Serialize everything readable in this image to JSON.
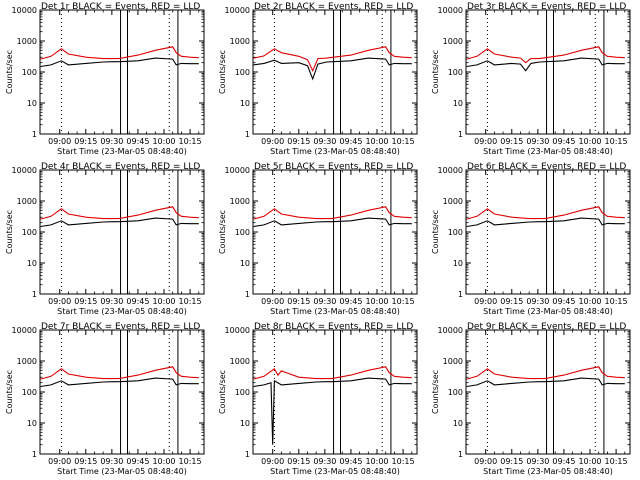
{
  "figure": {
    "background": "#ffffff",
    "event_color": "#000000",
    "lld_color": "#e00000"
  },
  "chart_data": [
    {
      "type": "line",
      "title": "Det 1r BLACK = Events, RED = LLD",
      "xlabel": "Start Time (23-Mar-05 08:48:40)",
      "ylabel": "Counts/sec",
      "y_scale": "log",
      "ylim": [
        1,
        10000
      ],
      "y_ticks": [
        "1",
        "10",
        "100",
        "1000",
        "10000"
      ],
      "x_ticks": [
        "09:00",
        "09:15",
        "09:30",
        "09:45",
        "10:00",
        "10:15"
      ],
      "series": [
        {
          "name": "Events",
          "color": "#000000",
          "x": [
            "08:49",
            "08:55",
            "09:01",
            "09:05",
            "09:15",
            "09:25",
            "09:31",
            "09:34",
            "09:45",
            "09:55",
            "10:05",
            "10:07",
            "10:10",
            "10:15",
            "10:20"
          ],
          "values": [
            150,
            170,
            230,
            170,
            190,
            210,
            215,
            215,
            230,
            280,
            260,
            170,
            190,
            185,
            185
          ]
        },
        {
          "name": "LLD",
          "color": "#e00000",
          "x": [
            "08:49",
            "08:55",
            "09:01",
            "09:05",
            "09:15",
            "09:25",
            "09:31",
            "09:34",
            "09:45",
            "09:55",
            "10:05",
            "10:07",
            "10:10",
            "10:15",
            "10:20"
          ],
          "values": [
            260,
            320,
            560,
            380,
            300,
            270,
            270,
            270,
            350,
            500,
            650,
            420,
            320,
            300,
            290
          ]
        }
      ],
      "saa_lines": [
        "09:35",
        "09:39",
        "10:08"
      ],
      "dotted_lines": [
        "09:01",
        "10:03"
      ]
    },
    {
      "type": "line",
      "title": "Det 2r BLACK = Events, RED = LLD",
      "xlabel": "Start Time (23-Mar-05 08:48:40)",
      "ylabel": "Counts/sec",
      "y_scale": "log",
      "ylim": [
        1,
        10000
      ],
      "y_ticks": [
        "1",
        "10",
        "100",
        "1000",
        "10000"
      ],
      "x_ticks": [
        "09:00",
        "09:15",
        "09:30",
        "09:45",
        "10:00",
        "10:15"
      ],
      "series": [
        {
          "name": "Events",
          "color": "#000000",
          "x": [
            "08:49",
            "08:55",
            "09:01",
            "09:05",
            "09:15",
            "09:20",
            "09:23",
            "09:26",
            "09:31",
            "09:45",
            "09:55",
            "10:05",
            "10:07",
            "10:10",
            "10:15",
            "10:20"
          ],
          "values": [
            170,
            190,
            240,
            190,
            200,
            160,
            60,
            180,
            210,
            230,
            280,
            260,
            170,
            190,
            185,
            185
          ]
        },
        {
          "name": "LLD",
          "color": "#e00000",
          "x": [
            "08:49",
            "08:55",
            "09:01",
            "09:05",
            "09:15",
            "09:20",
            "09:23",
            "09:26",
            "09:31",
            "09:45",
            "09:55",
            "10:05",
            "10:07",
            "10:10",
            "10:15",
            "10:20"
          ],
          "values": [
            280,
            330,
            560,
            420,
            320,
            250,
            110,
            270,
            280,
            350,
            500,
            650,
            420,
            320,
            300,
            290
          ]
        }
      ],
      "saa_lines": [
        "09:35",
        "09:39",
        "10:08"
      ],
      "dotted_lines": [
        "09:01",
        "10:03"
      ]
    },
    {
      "type": "line",
      "title": "Det 3r BLACK = Events, RED = LLD",
      "xlabel": "Start Time (23-Mar-05 08:48:40)",
      "ylabel": "Counts/sec",
      "y_scale": "log",
      "ylim": [
        1,
        10000
      ],
      "y_ticks": [
        "1",
        "10",
        "100",
        "1000",
        "10000"
      ],
      "x_ticks": [
        "09:00",
        "09:15",
        "09:30",
        "09:45",
        "10:00",
        "10:15"
      ],
      "series": [
        {
          "name": "Events",
          "color": "#000000",
          "x": [
            "08:49",
            "08:55",
            "09:01",
            "09:05",
            "09:15",
            "09:20",
            "09:23",
            "09:26",
            "09:31",
            "09:45",
            "09:55",
            "10:05",
            "10:07",
            "10:10",
            "10:15",
            "10:20"
          ],
          "values": [
            150,
            170,
            230,
            170,
            190,
            180,
            110,
            190,
            210,
            230,
            280,
            260,
            170,
            190,
            185,
            185
          ]
        },
        {
          "name": "LLD",
          "color": "#e00000",
          "x": [
            "08:49",
            "08:55",
            "09:01",
            "09:05",
            "09:15",
            "09:20",
            "09:23",
            "09:26",
            "09:31",
            "09:45",
            "09:55",
            "10:05",
            "10:07",
            "10:10",
            "10:15",
            "10:20"
          ],
          "values": [
            260,
            320,
            560,
            380,
            300,
            280,
            200,
            270,
            270,
            350,
            500,
            650,
            420,
            320,
            300,
            290
          ]
        }
      ],
      "saa_lines": [
        "09:35",
        "09:39",
        "10:08"
      ],
      "dotted_lines": [
        "09:01",
        "10:03"
      ]
    },
    {
      "type": "line",
      "title": "Det 4r BLACK = Events, RED = LLD",
      "xlabel": "Start Time (23-Mar-05 08:48:40)",
      "ylabel": "Counts/sec",
      "y_scale": "log",
      "ylim": [
        1,
        10000
      ],
      "y_ticks": [
        "1",
        "10",
        "100",
        "1000",
        "10000"
      ],
      "x_ticks": [
        "09:00",
        "09:15",
        "09:30",
        "09:45",
        "10:00",
        "10:15"
      ],
      "series": [
        {
          "name": "Events",
          "color": "#000000",
          "x": [
            "08:49",
            "08:55",
            "09:01",
            "09:05",
            "09:15",
            "09:25",
            "09:31",
            "09:34",
            "09:45",
            "09:55",
            "10:05",
            "10:07",
            "10:10",
            "10:15",
            "10:20"
          ],
          "values": [
            150,
            170,
            230,
            170,
            190,
            210,
            215,
            215,
            230,
            280,
            260,
            170,
            190,
            185,
            185
          ]
        },
        {
          "name": "LLD",
          "color": "#e00000",
          "x": [
            "08:49",
            "08:55",
            "09:01",
            "09:05",
            "09:15",
            "09:25",
            "09:31",
            "09:34",
            "09:45",
            "09:55",
            "10:05",
            "10:07",
            "10:10",
            "10:15",
            "10:20"
          ],
          "values": [
            260,
            320,
            560,
            380,
            300,
            270,
            270,
            270,
            350,
            500,
            650,
            420,
            320,
            300,
            290
          ]
        }
      ],
      "saa_lines": [
        "09:35",
        "09:39",
        "10:08"
      ],
      "dotted_lines": [
        "09:01",
        "10:03"
      ]
    },
    {
      "type": "line",
      "title": "Det 5r BLACK = Events, RED = LLD",
      "xlabel": "Start Time (23-Mar-05 08:48:40)",
      "ylabel": "Counts/sec",
      "y_scale": "log",
      "ylim": [
        1,
        10000
      ],
      "y_ticks": [
        "1",
        "10",
        "100",
        "1000",
        "10000"
      ],
      "x_ticks": [
        "09:00",
        "09:15",
        "09:30",
        "09:45",
        "10:00",
        "10:15"
      ],
      "series": [
        {
          "name": "Events",
          "color": "#000000",
          "x": [
            "08:49",
            "08:55",
            "09:01",
            "09:05",
            "09:15",
            "09:25",
            "09:31",
            "09:34",
            "09:45",
            "09:55",
            "10:05",
            "10:07",
            "10:10",
            "10:15",
            "10:20"
          ],
          "values": [
            150,
            170,
            230,
            170,
            190,
            210,
            215,
            215,
            230,
            280,
            260,
            170,
            190,
            185,
            185
          ]
        },
        {
          "name": "LLD",
          "color": "#e00000",
          "x": [
            "08:49",
            "08:55",
            "09:01",
            "09:05",
            "09:15",
            "09:25",
            "09:31",
            "09:34",
            "09:45",
            "09:55",
            "10:05",
            "10:07",
            "10:10",
            "10:15",
            "10:20"
          ],
          "values": [
            260,
            320,
            560,
            380,
            300,
            270,
            270,
            270,
            350,
            500,
            650,
            420,
            320,
            300,
            290
          ]
        }
      ],
      "saa_lines": [
        "09:35",
        "09:39",
        "10:08"
      ],
      "dotted_lines": [
        "09:01",
        "10:03"
      ]
    },
    {
      "type": "line",
      "title": "Det 6r BLACK = Events, RED = LLD",
      "xlabel": "Start Time (23-Mar-05 08:48:40)",
      "ylabel": "Counts/sec",
      "y_scale": "log",
      "ylim": [
        1,
        10000
      ],
      "y_ticks": [
        "1",
        "10",
        "100",
        "1000",
        "10000"
      ],
      "x_ticks": [
        "09:00",
        "09:15",
        "09:30",
        "09:45",
        "10:00",
        "10:15"
      ],
      "series": [
        {
          "name": "Events",
          "color": "#000000",
          "x": [
            "08:49",
            "08:55",
            "09:01",
            "09:05",
            "09:15",
            "09:25",
            "09:31",
            "09:34",
            "09:45",
            "09:55",
            "10:05",
            "10:07",
            "10:10",
            "10:15",
            "10:20"
          ],
          "values": [
            150,
            170,
            230,
            170,
            190,
            210,
            215,
            215,
            230,
            280,
            260,
            170,
            190,
            185,
            185
          ]
        },
        {
          "name": "LLD",
          "color": "#e00000",
          "x": [
            "08:49",
            "08:55",
            "09:01",
            "09:05",
            "09:15",
            "09:25",
            "09:31",
            "09:34",
            "09:45",
            "09:55",
            "10:05",
            "10:07",
            "10:10",
            "10:15",
            "10:20"
          ],
          "values": [
            260,
            320,
            560,
            380,
            300,
            270,
            270,
            270,
            350,
            500,
            650,
            420,
            320,
            300,
            290
          ]
        }
      ],
      "saa_lines": [
        "09:35",
        "09:39",
        "10:08"
      ],
      "dotted_lines": [
        "09:01",
        "10:03"
      ]
    },
    {
      "type": "line",
      "title": "Det 7r BLACK = Events, RED = LLD",
      "xlabel": "Start Time (23-Mar-05 08:48:40)",
      "ylabel": "Counts/sec",
      "y_scale": "log",
      "ylim": [
        1,
        10000
      ],
      "y_ticks": [
        "1",
        "10",
        "100",
        "1000",
        "10000"
      ],
      "x_ticks": [
        "09:00",
        "09:15",
        "09:30",
        "09:45",
        "10:00",
        "10:15"
      ],
      "series": [
        {
          "name": "Events",
          "color": "#000000",
          "x": [
            "08:49",
            "08:55",
            "09:01",
            "09:05",
            "09:15",
            "09:25",
            "09:31",
            "09:34",
            "09:45",
            "09:55",
            "10:05",
            "10:07",
            "10:10",
            "10:15",
            "10:20"
          ],
          "values": [
            150,
            170,
            230,
            170,
            190,
            210,
            215,
            215,
            230,
            280,
            260,
            170,
            190,
            185,
            185
          ]
        },
        {
          "name": "LLD",
          "color": "#e00000",
          "x": [
            "08:49",
            "08:55",
            "09:01",
            "09:05",
            "09:15",
            "09:25",
            "09:31",
            "09:34",
            "09:45",
            "09:55",
            "10:05",
            "10:07",
            "10:10",
            "10:15",
            "10:20"
          ],
          "values": [
            260,
            320,
            560,
            380,
            300,
            270,
            270,
            270,
            350,
            500,
            650,
            420,
            320,
            300,
            290
          ]
        }
      ],
      "saa_lines": [
        "09:35",
        "09:39",
        "10:08"
      ],
      "dotted_lines": [
        "09:01",
        "10:03"
      ]
    },
    {
      "type": "line",
      "title": "Det 8r BLACK = Events, RED = LLD",
      "xlabel": "Start Time (23-Mar-05 08:48:40)",
      "ylabel": "Counts/sec",
      "y_scale": "log",
      "ylim": [
        1,
        10000
      ],
      "y_ticks": [
        "1",
        "10",
        "100",
        "1000",
        "10000"
      ],
      "x_ticks": [
        "09:00",
        "09:15",
        "09:30",
        "09:45",
        "10:00",
        "10:15"
      ],
      "series": [
        {
          "name": "Events",
          "color": "#000000",
          "x": [
            "08:49",
            "08:55",
            "08:59",
            "09:00",
            "09:01",
            "09:05",
            "09:15",
            "09:25",
            "09:31",
            "09:34",
            "09:45",
            "09:55",
            "10:05",
            "10:07",
            "10:10",
            "10:15",
            "10:20"
          ],
          "values": [
            150,
            170,
            200,
            2,
            230,
            170,
            190,
            210,
            215,
            215,
            230,
            280,
            260,
            170,
            190,
            185,
            185
          ]
        },
        {
          "name": "LLD",
          "color": "#e00000",
          "x": [
            "08:49",
            "08:55",
            "09:01",
            "09:03",
            "09:05",
            "09:15",
            "09:25",
            "09:31",
            "09:34",
            "09:45",
            "09:55",
            "10:05",
            "10:07",
            "10:10",
            "10:15",
            "10:20"
          ],
          "values": [
            260,
            320,
            560,
            350,
            480,
            300,
            270,
            270,
            270,
            350,
            500,
            650,
            420,
            320,
            300,
            290
          ]
        }
      ],
      "saa_lines": [
        "09:35",
        "09:39",
        "10:08"
      ],
      "dotted_lines": [
        "09:01",
        "10:03"
      ]
    },
    {
      "type": "line",
      "title": "Det 9r BLACK = Events, RED = LLD",
      "xlabel": "Start Time (23-Mar-05 08:48:40)",
      "ylabel": "Counts/sec",
      "y_scale": "log",
      "ylim": [
        1,
        10000
      ],
      "y_ticks": [
        "1",
        "10",
        "100",
        "1000",
        "10000"
      ],
      "x_ticks": [
        "09:00",
        "09:15",
        "09:30",
        "09:45",
        "10:00",
        "10:15"
      ],
      "series": [
        {
          "name": "Events",
          "color": "#000000",
          "x": [
            "08:49",
            "08:55",
            "09:01",
            "09:05",
            "09:15",
            "09:25",
            "09:31",
            "09:34",
            "09:45",
            "09:55",
            "10:05",
            "10:07",
            "10:10",
            "10:15",
            "10:20"
          ],
          "values": [
            150,
            170,
            230,
            170,
            190,
            210,
            215,
            215,
            230,
            280,
            260,
            170,
            190,
            185,
            185
          ]
        },
        {
          "name": "LLD",
          "color": "#e00000",
          "x": [
            "08:49",
            "08:55",
            "09:01",
            "09:05",
            "09:15",
            "09:25",
            "09:31",
            "09:34",
            "09:45",
            "09:55",
            "10:05",
            "10:07",
            "10:10",
            "10:15",
            "10:20"
          ],
          "values": [
            260,
            320,
            560,
            380,
            300,
            270,
            270,
            270,
            350,
            500,
            650,
            420,
            320,
            300,
            290
          ]
        }
      ],
      "saa_lines": [
        "09:35",
        "09:39",
        "10:08"
      ],
      "dotted_lines": [
        "09:01",
        "10:03"
      ]
    }
  ]
}
